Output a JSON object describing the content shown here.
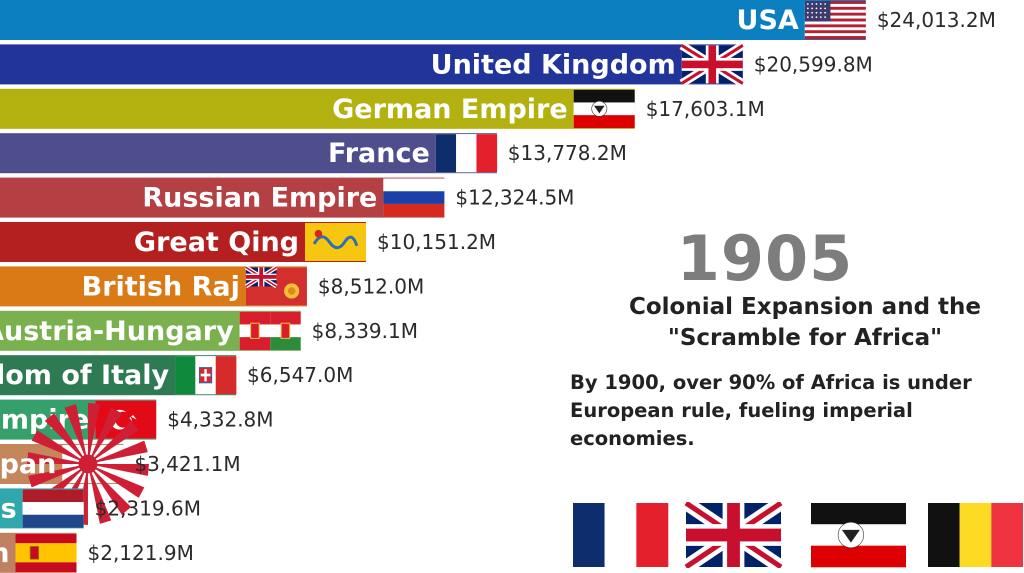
{
  "year": "1905",
  "headline": [
    "Colonial Expansion and the",
    "\"Scramble for Africa\""
  ],
  "description": [
    "By 1900, over 90% of Africa is under",
    "European rule, fueling imperial",
    "economies."
  ],
  "chart_data": {
    "type": "bar",
    "orientation": "horizontal",
    "title": "",
    "xlabel": "",
    "ylabel": "",
    "xlim": [
      0,
      28400
    ],
    "grid": false,
    "legend": "none",
    "categories": [
      "USA",
      "United Kingdom",
      "German Empire",
      "France",
      "Russian Empire",
      "Great Qing",
      "British Raj",
      "Austria-Hungary",
      "Kingdom of Italy",
      "Ottoman Empire",
      "Empire of Japan",
      "Netherlands",
      "Spain"
    ],
    "values": [
      24013.2,
      20599.8,
      17603.1,
      13778.2,
      12324.5,
      10151.2,
      8512.0,
      8339.1,
      6547.0,
      4332.8,
      3421.1,
      2319.6,
      2121.9
    ],
    "value_labels": [
      "$24,013.2M",
      "$20,599.8M",
      "$17,603.1M",
      "$13,778.2M",
      "$12,324.5M",
      "$10,151.2M",
      "$8,512.0M",
      "$8,339.1M",
      "$6,547.0M",
      "$4,332.8M",
      "$3,421.1M",
      "$2,319.6M",
      "$2,121.9M"
    ],
    "colors": [
      "#0b7fbf",
      "#22349a",
      "#b2b10f",
      "#4e4e8c",
      "#b54044",
      "#b41f20",
      "#d97a17",
      "#7ab04e",
      "#2e7a53",
      "#36a06a",
      "#c4875d",
      "#2fa7ac",
      "#c08162"
    ],
    "flags": [
      "usa-flag",
      "uk-flag",
      "german-empire-flag",
      "france-flag",
      "russia-flag",
      "qing-flag",
      "british-raj-flag",
      "austria-hungary-flag",
      "italy-flag",
      "ottoman-flag",
      "japan-flag",
      "netherlands-flag",
      "spain-flag"
    ]
  },
  "colonial_flags": [
    "france-flag",
    "uk-flag",
    "german-empire-flag",
    "belgium-flag"
  ]
}
